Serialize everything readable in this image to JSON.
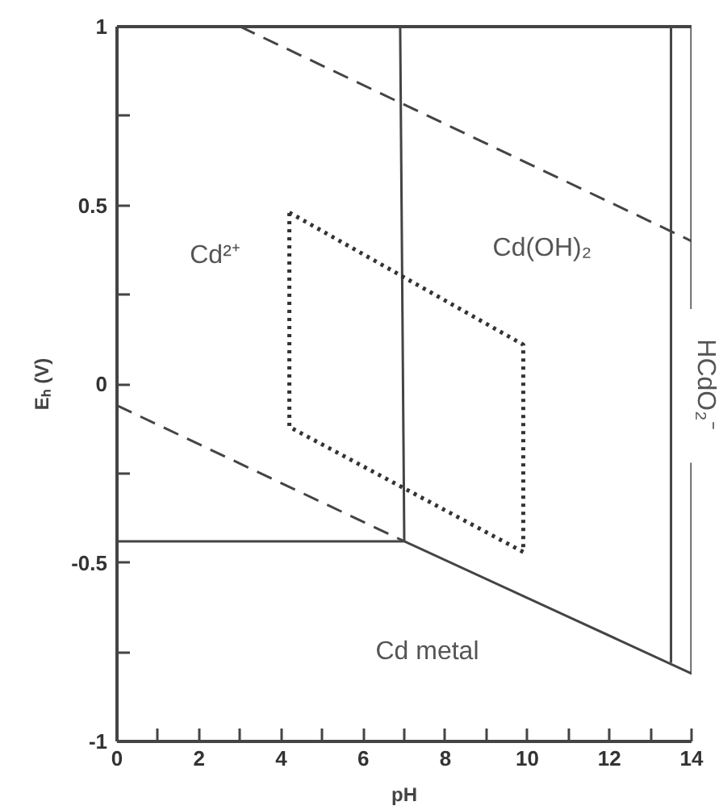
{
  "chart_data": {
    "type": "line",
    "xlabel": "pH",
    "ylabel": "Eₕ (V)",
    "xlim": [
      0,
      14
    ],
    "ylim": [
      -1,
      1
    ],
    "xticks": [
      0,
      {
        "value": 1,
        "label": null
      },
      2,
      {
        "value": 3,
        "label": null
      },
      4,
      {
        "value": 5,
        "label": null
      },
      6,
      {
        "value": 7,
        "label": null
      },
      8,
      {
        "value": 9,
        "label": null
      },
      10,
      {
        "value": 11,
        "label": null
      },
      12,
      {
        "value": 13,
        "label": null
      },
      14
    ],
    "yticks": [
      -1,
      {
        "value": -0.75,
        "label": null
      },
      -0.5,
      {
        "value": -0.25,
        "label": null
      },
      0,
      {
        "value": 0.25,
        "label": null
      },
      0.5,
      {
        "value": 0.75,
        "label": null
      },
      1
    ],
    "grid": false,
    "marker": "none",
    "series": [
      {
        "color": "#444444",
        "line_style": "dashed",
        "x": [
          3,
          14
        ],
        "values": [
          1,
          0.4
        ]
      },
      {
        "color": "#444444",
        "line_style": "dashed",
        "x": [
          0,
          7
        ],
        "values": [
          -0.06,
          -0.44
        ]
      },
      {
        "color": "#444444",
        "line_style": "solid",
        "x": [
          0,
          7,
          14,
          14
        ],
        "values": [
          -0.44,
          -0.44,
          -0.81,
          -0.22
        ]
      },
      {
        "color": "#444444",
        "line_style": "solid",
        "x": [
          6.9,
          7
        ],
        "values": [
          1,
          -0.44
        ]
      },
      {
        "color": "#444444",
        "line_style": "solid",
        "x": [
          13.5,
          13.5
        ],
        "values": [
          1,
          -0.78
        ]
      },
      {
        "color": "#444444",
        "line_style": "solid",
        "x": [
          14,
          14
        ],
        "values": [
          1,
          0.21
        ]
      },
      {
        "color": "#333333",
        "line_style": "dotted",
        "x": [
          4.2,
          9.9,
          9.9
        ],
        "values": [
          0.48,
          0.11,
          -0.47
        ]
      },
      {
        "color": "#333333",
        "line_style": "dotted",
        "x": [
          9.9,
          4.2,
          4.2
        ],
        "values": [
          -0.47,
          -0.12,
          0.48
        ]
      }
    ],
    "annotations": [
      "Cd²⁺",
      "Cd(OH)₂",
      "Cd metal",
      "HCdO₂⁻"
    ]
  }
}
